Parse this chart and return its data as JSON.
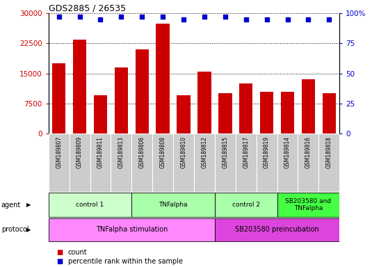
{
  "title": "GDS2885 / 26535",
  "samples": [
    "GSM189807",
    "GSM189809",
    "GSM189811",
    "GSM189813",
    "GSM189806",
    "GSM189808",
    "GSM189810",
    "GSM189812",
    "GSM189815",
    "GSM189817",
    "GSM189819",
    "GSM189814",
    "GSM189816",
    "GSM189818"
  ],
  "counts": [
    17500,
    23500,
    9500,
    16500,
    21000,
    27500,
    9500,
    15500,
    10000,
    12500,
    10500,
    10500,
    13500,
    10000
  ],
  "percentiles": [
    97,
    97,
    95,
    97,
    97,
    97,
    95,
    97,
    97,
    95,
    95,
    95,
    95,
    95
  ],
  "bar_color": "#cc0000",
  "dot_color": "#0000cc",
  "ylim_left": [
    0,
    30000
  ],
  "ylim_right": [
    0,
    100
  ],
  "yticks_left": [
    0,
    7500,
    15000,
    22500,
    30000
  ],
  "yticks_right": [
    0,
    25,
    50,
    75,
    100
  ],
  "ytick_right_labels": [
    "0",
    "25",
    "50",
    "75",
    "100%"
  ],
  "agent_groups": [
    {
      "label": "control 1",
      "start": 0,
      "end": 3,
      "color": "#ccffcc"
    },
    {
      "label": "TNFalpha",
      "start": 4,
      "end": 7,
      "color": "#aaffaa"
    },
    {
      "label": "control 2",
      "start": 8,
      "end": 10,
      "color": "#aaffaa"
    },
    {
      "label": "SB203580 and\nTNFalpha",
      "start": 11,
      "end": 13,
      "color": "#44ff44"
    }
  ],
  "protocol_groups": [
    {
      "label": "TNFalpha stimulation",
      "start": 0,
      "end": 7,
      "color": "#ff88ff"
    },
    {
      "label": "SB203580 preincubation",
      "start": 8,
      "end": 13,
      "color": "#dd44dd"
    }
  ],
  "tick_bg_color": "#cccccc",
  "legend_count_color": "#cc0000",
  "legend_dot_color": "#0000cc"
}
